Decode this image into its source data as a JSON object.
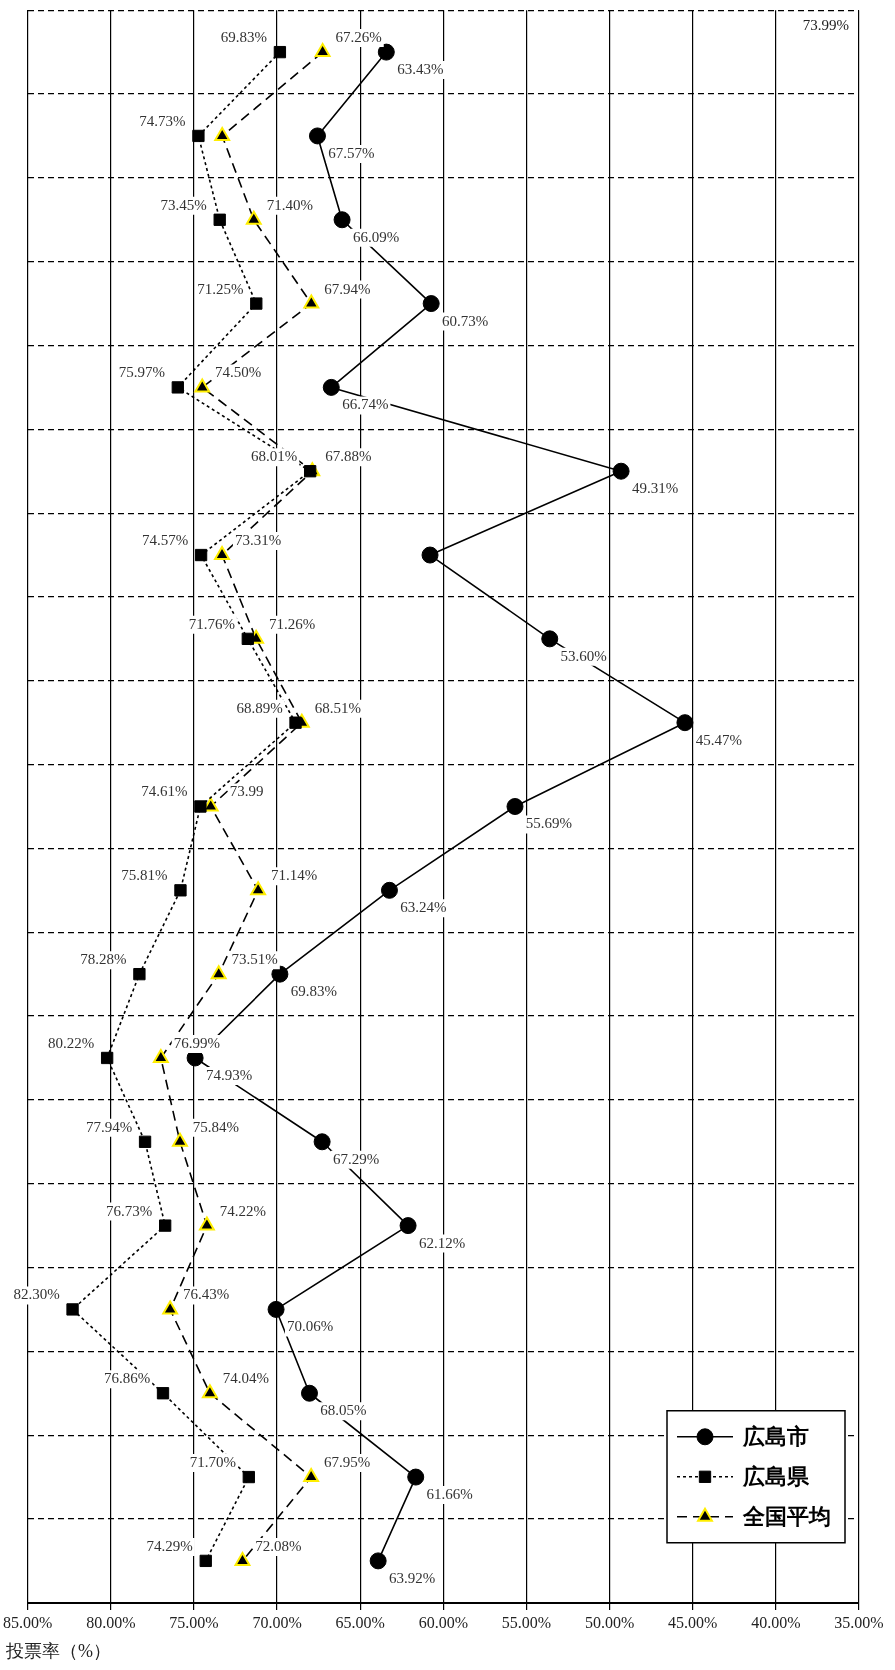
{
  "chart_data": {
    "type": "line",
    "orientation": "horizontal",
    "xlabel": "投票率（%）",
    "categories": [
      null,
      null,
      null,
      null,
      null,
      null,
      null,
      null,
      null,
      null,
      null,
      null,
      null,
      null,
      null,
      null,
      null,
      null,
      null
    ],
    "xlim": [
      85,
      35
    ],
    "xticks": [
      {
        "value": 85,
        "label": "85.00%"
      },
      {
        "value": 80,
        "label": "80.00%"
      },
      {
        "value": 75,
        "label": "75.00%"
      },
      {
        "value": 70,
        "label": "70.00%"
      },
      {
        "value": 65,
        "label": "65.00%"
      },
      {
        "value": 60,
        "label": "60.00%"
      },
      {
        "value": 55,
        "label": "55.00%"
      },
      {
        "value": 50,
        "label": "50.00%"
      },
      {
        "value": 45,
        "label": "45.00%"
      },
      {
        "value": 40,
        "label": "40.00%"
      },
      {
        "value": 35,
        "label": "35.00%"
      }
    ],
    "grid": true,
    "legend": "bottom right",
    "series": [
      {
        "name": "広島市",
        "color": "#000000",
        "marker": "circle",
        "line_style": "solid",
        "values": [
          63.43,
          67.57,
          66.09,
          60.73,
          66.74,
          49.31,
          60.8,
          53.6,
          45.47,
          55.69,
          63.24,
          69.83,
          74.93,
          67.29,
          62.12,
          70.06,
          68.05,
          61.66,
          63.92
        ],
        "value_labels": [
          "63.43%",
          "67.57%",
          "66.09%",
          "60.73%",
          "66.74%",
          "49.31%",
          null,
          "53.60%",
          "45.47%",
          "55.69%",
          "63.24%",
          "69.83%",
          "74.93%",
          "67.29%",
          "62.12%",
          "70.06%",
          "68.05%",
          "61.66%",
          "63.92%"
        ]
      },
      {
        "name": "広島県",
        "color": "#000000",
        "marker": "square",
        "line_style": "dotted",
        "values": [
          69.83,
          74.73,
          73.45,
          71.25,
          75.97,
          68.01,
          74.57,
          71.76,
          68.89,
          74.61,
          75.81,
          78.28,
          80.22,
          77.94,
          76.73,
          82.3,
          76.86,
          71.7,
          74.29
        ],
        "value_labels": [
          "69.83%",
          "74.73%",
          "73.45%",
          "71.25%",
          "75.97%",
          "68.01%",
          "74.57%",
          "71.76%",
          "68.89%",
          "74.61%",
          "75.81%",
          "78.28%",
          "80.22%",
          "77.94%",
          "76.73%",
          "82.30%",
          "76.86%",
          "71.70%",
          "74.29%"
        ]
      },
      {
        "name": "全国平均",
        "color": "#000000",
        "marker": "triangle",
        "line_style": "dashed",
        "values": [
          67.26,
          73.3,
          71.4,
          67.94,
          74.5,
          67.88,
          73.31,
          71.26,
          68.51,
          73.99,
          71.14,
          73.51,
          76.99,
          75.84,
          74.22,
          76.43,
          74.04,
          67.95,
          72.08
        ],
        "value_labels": [
          "67.26%",
          null,
          "71.40%",
          "67.94%",
          "74.50%",
          "67.88%",
          "73.31%",
          "71.26%",
          "68.51%",
          "73.99",
          "71.14%",
          "73.51%",
          "76.99%",
          "75.84%",
          "74.22%",
          "76.43%",
          "74.04%",
          "67.95%",
          "72.08%"
        ]
      }
    ],
    "annotations": [
      "73.99%"
    ]
  }
}
